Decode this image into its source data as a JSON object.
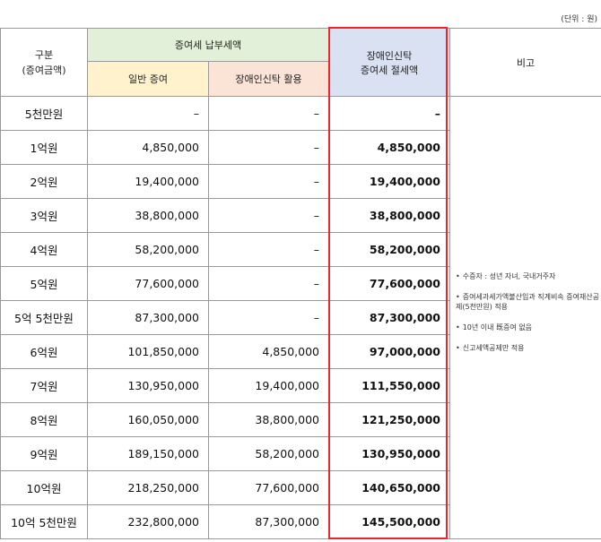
{
  "unit_label": "(단위 : 원)",
  "header": {
    "category_line1": "구분",
    "category_line2": "(증여금액)",
    "group_title": "증여세 납부세액",
    "general_gift": "일반 증여",
    "trust_use": "장애인신탁 활용",
    "saving_line1": "장애인신탁",
    "saving_line2": "증여세 절세액",
    "note": "비고"
  },
  "rows": [
    {
      "label": "5천만원",
      "general": "–",
      "trust": "–",
      "saving": "–"
    },
    {
      "label": "1억원",
      "general": "4,850,000",
      "trust": "–",
      "saving": "4,850,000"
    },
    {
      "label": "2억원",
      "general": "19,400,000",
      "trust": "–",
      "saving": "19,400,000"
    },
    {
      "label": "3억원",
      "general": "38,800,000",
      "trust": "–",
      "saving": "38,800,000"
    },
    {
      "label": "4억원",
      "general": "58,200,000",
      "trust": "–",
      "saving": "58,200,000"
    },
    {
      "label": "5억원",
      "general": "77,600,000",
      "trust": "–",
      "saving": "77,600,000"
    },
    {
      "label": "5억 5천만원",
      "general": "87,300,000",
      "trust": "–",
      "saving": "87,300,000"
    },
    {
      "label": "6억원",
      "general": "101,850,000",
      "trust": "4,850,000",
      "saving": "97,000,000"
    },
    {
      "label": "7억원",
      "general": "130,950,000",
      "trust": "19,400,000",
      "saving": "111,550,000"
    },
    {
      "label": "8억원",
      "general": "160,050,000",
      "trust": "38,800,000",
      "saving": "121,250,000"
    },
    {
      "label": "9억원",
      "general": "189,150,000",
      "trust": "58,200,000",
      "saving": "130,950,000"
    },
    {
      "label": "10억원",
      "general": "218,250,000",
      "trust": "77,600,000",
      "saving": "140,650,000"
    },
    {
      "label": "10억 5천만원",
      "general": "232,800,000",
      "trust": "87,300,000",
      "saving": "145,500,000"
    }
  ],
  "notes": [
    "수증자 : 성년 자녀, 국내거주자",
    "증여세과세가액불산입과 직계비속 증여재산공제(5천만원) 적용",
    "10년 이내 既증여 없음",
    "신고세액공제만 적용"
  ],
  "colors": {
    "group_header_bg": "#e2efd9",
    "general_header_bg": "#fff2cc",
    "trust_header_bg": "#fbe4d5",
    "saving_header_bg": "#d9e1f2",
    "highlight_border": "#e8282c"
  }
}
